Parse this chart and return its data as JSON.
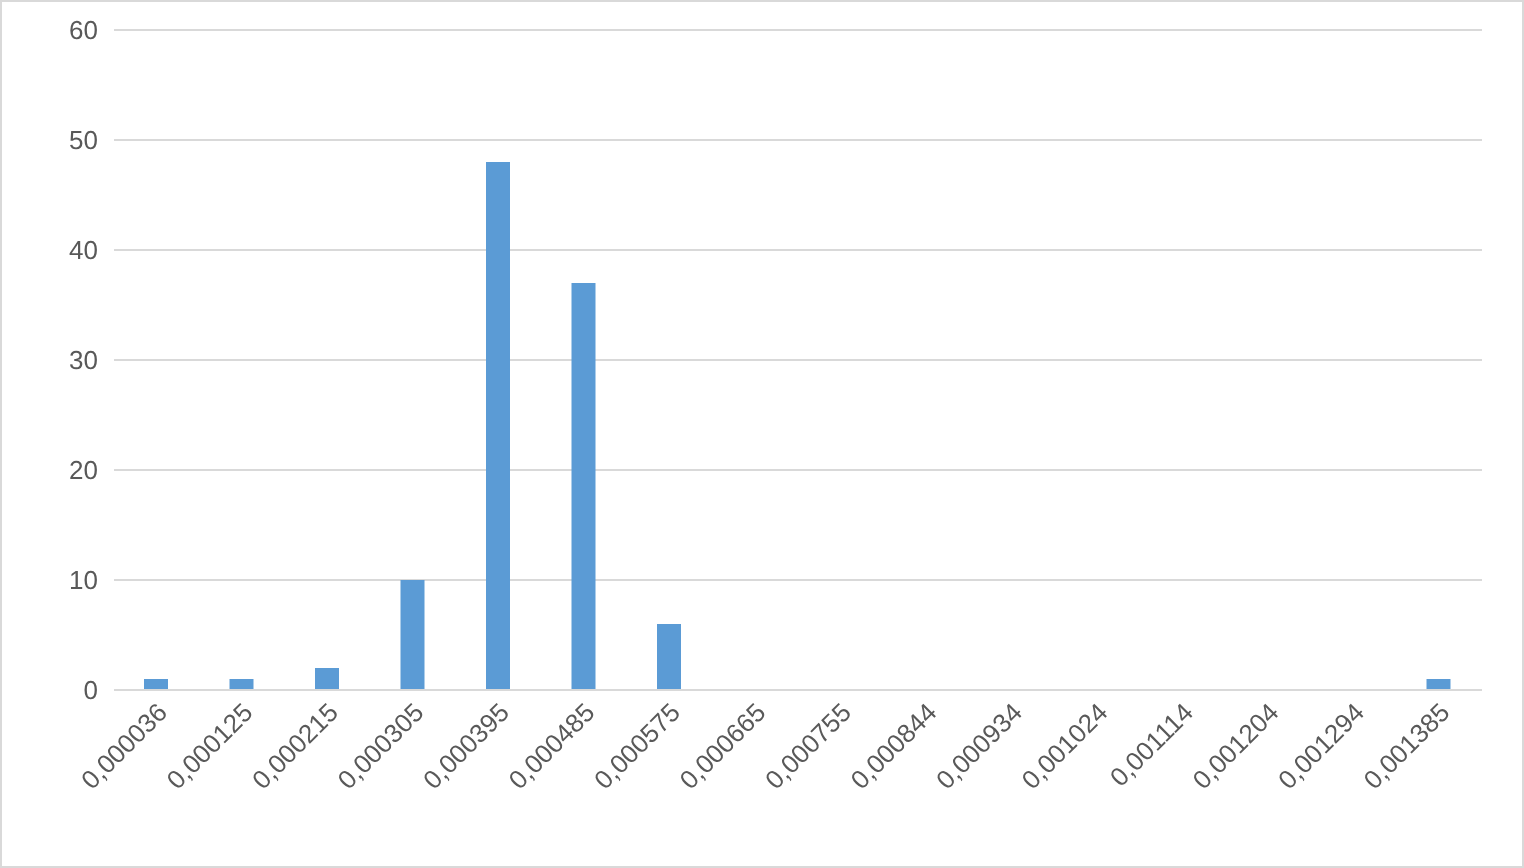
{
  "chart_data": {
    "type": "bar",
    "categories": [
      "0,000036",
      "0,000125",
      "0,000215",
      "0,000305",
      "0,000395",
      "0,000485",
      "0,000575",
      "0,000665",
      "0,000755",
      "0,000844",
      "0,000934",
      "0,001024",
      "0,001114",
      "0,001204",
      "0,001294",
      "0,001385"
    ],
    "values": [
      1,
      1,
      2,
      10,
      48,
      37,
      6,
      0,
      0,
      0,
      0,
      0,
      0,
      0,
      0,
      1
    ],
    "color": "#5b9bd5",
    "ylim": [
      0,
      60
    ],
    "yticks": [
      0,
      10,
      20,
      30,
      40,
      50,
      60
    ],
    "grid": "y",
    "legend": false
  }
}
